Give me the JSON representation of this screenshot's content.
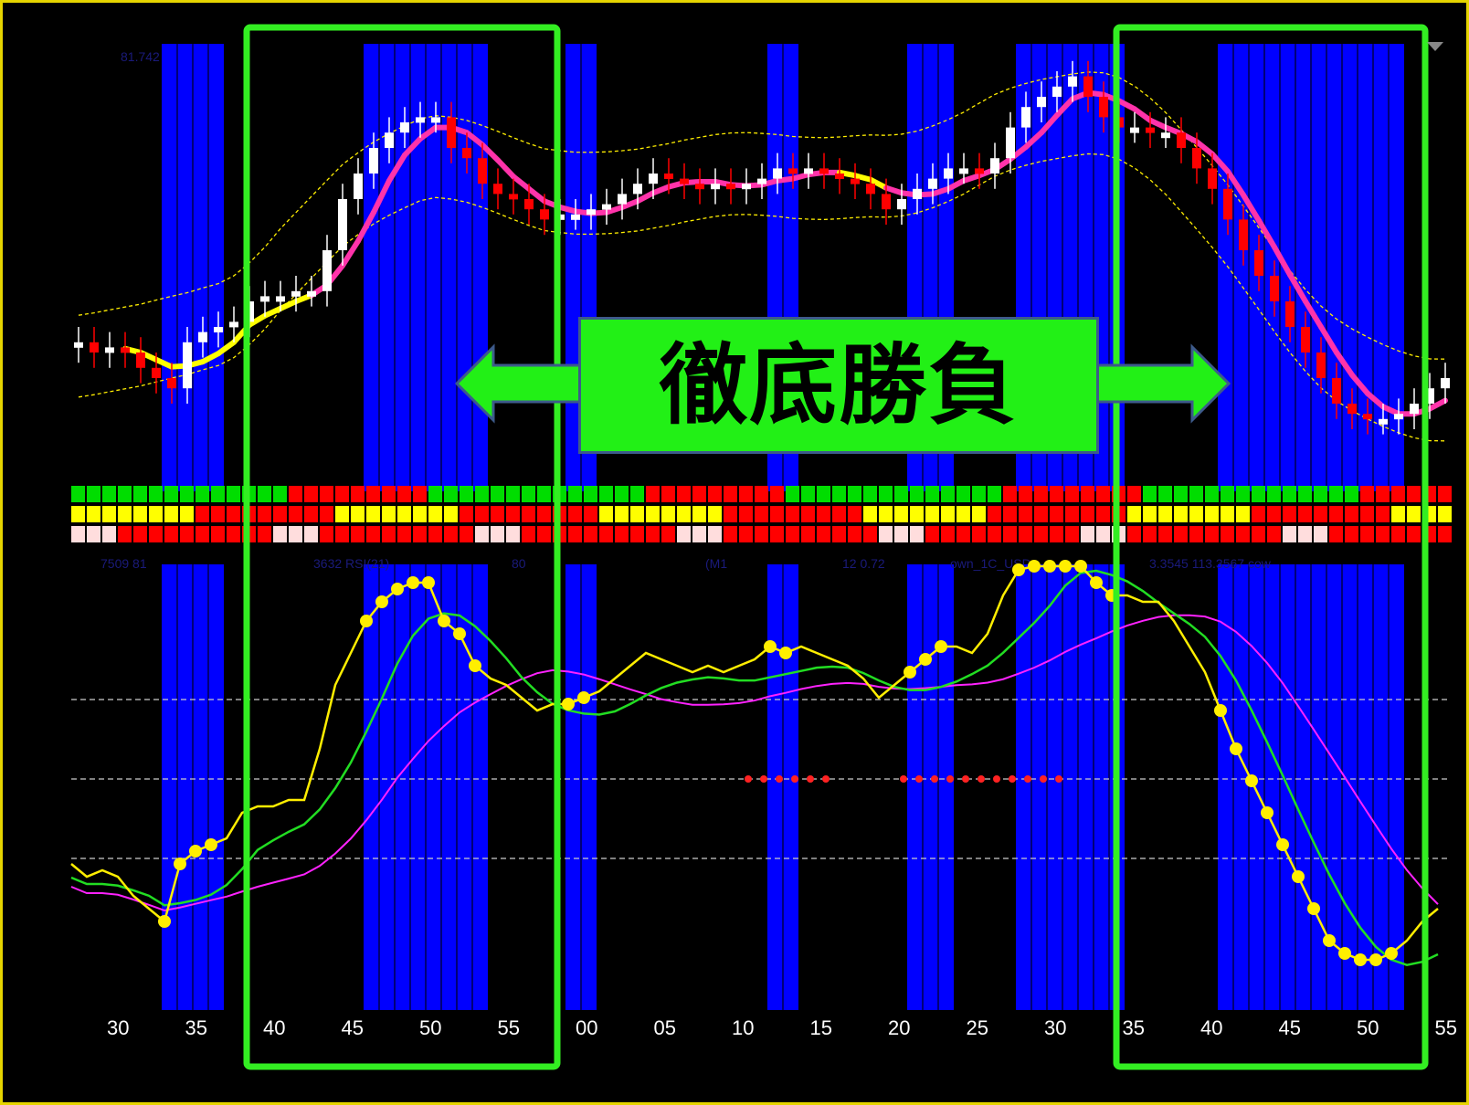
{
  "banner": {
    "text": "徹底勝負"
  },
  "colors": {
    "background": "#000000",
    "blue_band": "#0000ff",
    "frame_green": "#33ee22",
    "banner_green": "#22f016",
    "bull_candle": "#ffffff",
    "bear_candle": "#ff0000",
    "ma_pink": "#ff33aa",
    "ma_yellow": "#ffff00",
    "line_green": "#22dd22",
    "line_magenta": "#ff22ff",
    "line_yellow": "#ffee00"
  },
  "chart_data": {
    "type": "line",
    "x_tick_labels": [
      "30",
      "35",
      "40",
      "45",
      "50",
      "55",
      "00",
      "05",
      "10",
      "15",
      "20",
      "25",
      "30",
      "35",
      "40",
      "45",
      "50",
      "55"
    ],
    "price_scale_label": "81.742",
    "indicator_header_fragments": [
      "7509 81",
      "3632  RSI(21)",
      "80",
      "(M1",
      "12 0.72",
      "own_1C_USD",
      "3.3545 113.3567  cow"
    ],
    "highlight_bands": [
      {
        "from_bar": 3,
        "to_bar": 6
      },
      {
        "from_bar": 16,
        "to_bar": 23
      },
      {
        "from_bar": 29,
        "to_bar": 30
      },
      {
        "from_bar": 42,
        "to_bar": 43
      },
      {
        "from_bar": 51,
        "to_bar": 53
      },
      {
        "from_bar": 58,
        "to_bar": 64
      },
      {
        "from_bar": 71,
        "to_bar": 82
      }
    ],
    "candles_close_rel": [
      0.62,
      0.6,
      0.61,
      0.6,
      0.57,
      0.55,
      0.53,
      0.62,
      0.64,
      0.65,
      0.66,
      0.7,
      0.71,
      0.71,
      0.72,
      0.72,
      0.8,
      0.9,
      0.95,
      1.0,
      1.03,
      1.05,
      1.06,
      1.06,
      1.0,
      0.98,
      0.93,
      0.91,
      0.9,
      0.88,
      0.86,
      0.87,
      0.87,
      0.88,
      0.89,
      0.91,
      0.93,
      0.95,
      0.94,
      0.93,
      0.92,
      0.93,
      0.92,
      0.93,
      0.94,
      0.96,
      0.95,
      0.96,
      0.95,
      0.94,
      0.93,
      0.91,
      0.88,
      0.9,
      0.92,
      0.94,
      0.96,
      0.96,
      0.95,
      0.98,
      1.04,
      1.08,
      1.1,
      1.12,
      1.14,
      1.1,
      1.06,
      1.04,
      1.04,
      1.03,
      1.03,
      1.0,
      0.96,
      0.92,
      0.86,
      0.8,
      0.75,
      0.7,
      0.65,
      0.6,
      0.55,
      0.5,
      0.48,
      0.47,
      0.47,
      0.48,
      0.5,
      0.53,
      0.55
    ],
    "status_rows": 3,
    "rsi_levels": [
      70,
      50,
      30
    ]
  }
}
